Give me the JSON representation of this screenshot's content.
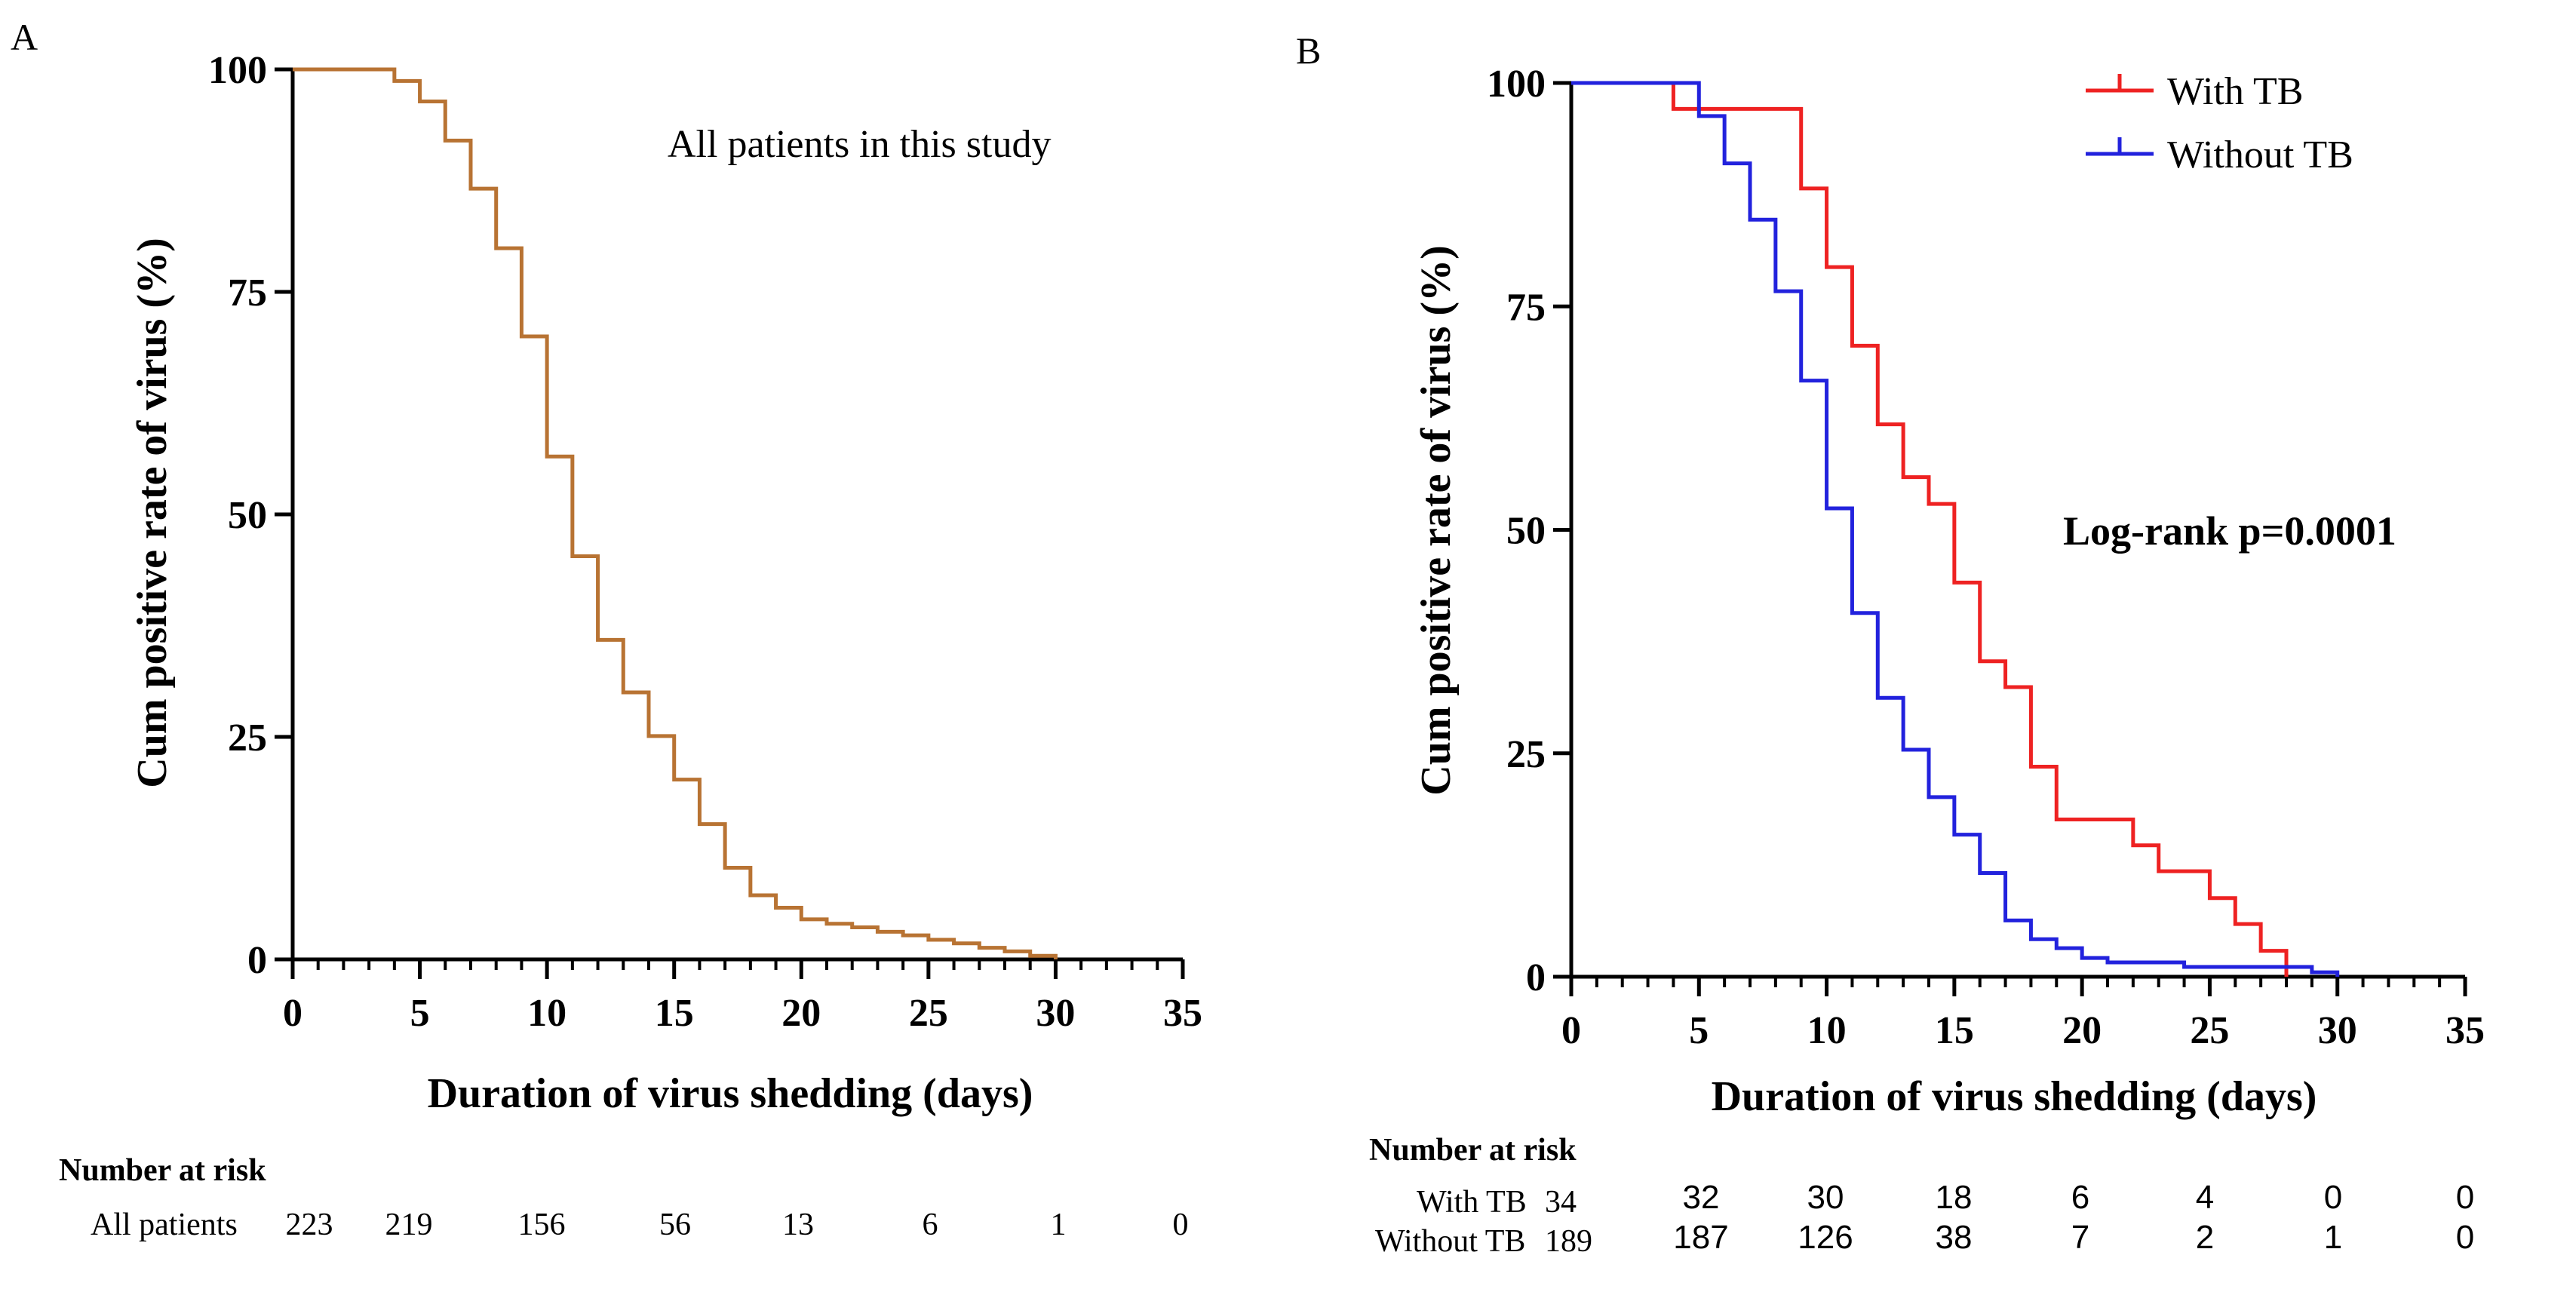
{
  "chart_data": [
    {
      "type": "line",
      "panel_label": "A",
      "title": "All patients in this study",
      "xlabel": "Duration of virus shedding (days)",
      "ylabel": "Cum positive rate of virus (%)",
      "xlim": [
        0,
        35
      ],
      "ylim": [
        0,
        100
      ],
      "xticks": [
        "0",
        "5",
        "10",
        "15",
        "20",
        "25",
        "30",
        "35"
      ],
      "yticks": [
        "0",
        "25",
        "50",
        "75",
        "100"
      ],
      "grid": false,
      "series": [
        {
          "name": "All patients",
          "color": "#b87333",
          "x": [
            0,
            4,
            5,
            6,
            7,
            8,
            9,
            10,
            11,
            12,
            13,
            14,
            15,
            16,
            17,
            18,
            19,
            20,
            21,
            22,
            23,
            24,
            25,
            26,
            27,
            28,
            29,
            30
          ],
          "y": [
            100,
            98.7,
            96.4,
            92.0,
            86.6,
            79.9,
            70.0,
            56.5,
            45.3,
            35.9,
            30.0,
            25.1,
            20.2,
            15.2,
            10.3,
            7.2,
            5.8,
            4.5,
            4.0,
            3.6,
            3.1,
            2.7,
            2.2,
            1.8,
            1.3,
            0.9,
            0.4,
            0
          ]
        }
      ],
      "risk_table": {
        "title": "Number at risk",
        "rows": [
          {
            "label": "All patients",
            "values": [
              "223",
              "219",
              "156",
              "56",
              "13",
              "6",
              "1",
              "0"
            ]
          }
        ]
      }
    },
    {
      "type": "line",
      "panel_label": "B",
      "title": "",
      "annotation": "Log-rank p=0.0001",
      "xlabel": "Duration of virus shedding (days)",
      "ylabel": "Cum positive rate of virus (%)",
      "xlim": [
        0,
        35
      ],
      "ylim": [
        0,
        100
      ],
      "xticks": [
        "0",
        "5",
        "10",
        "15",
        "20",
        "25",
        "30",
        "35"
      ],
      "yticks": [
        "0",
        "25",
        "50",
        "75",
        "100"
      ],
      "grid": false,
      "legend_position": "top-right",
      "series": [
        {
          "name": "With TB",
          "color": "#ee2222",
          "x": [
            0,
            4,
            9,
            10,
            11,
            12,
            13,
            14,
            15,
            16,
            17,
            18,
            19,
            22,
            23,
            25,
            26,
            27,
            28
          ],
          "y": [
            100,
            97.1,
            88.2,
            79.4,
            70.6,
            61.8,
            55.9,
            52.9,
            44.1,
            35.3,
            32.4,
            23.5,
            17.6,
            14.7,
            11.8,
            8.8,
            5.9,
            2.9,
            0
          ]
        },
        {
          "name": "Without TB",
          "color": "#2222dd",
          "x": [
            0,
            5,
            6,
            7,
            8,
            9,
            10,
            11,
            12,
            13,
            14,
            15,
            16,
            17,
            18,
            19,
            20,
            21,
            24,
            29,
            30
          ],
          "y": [
            100,
            96.3,
            91.0,
            84.7,
            76.7,
            66.7,
            52.4,
            40.7,
            31.2,
            25.4,
            20.1,
            15.9,
            11.6,
            6.3,
            4.2,
            3.2,
            2.1,
            1.6,
            1.1,
            0.5,
            0
          ]
        }
      ],
      "risk_table": {
        "title": "Number at risk",
        "rows": [
          {
            "label": "With TB",
            "first": "34",
            "values": [
              "32",
              "30",
              "18",
              "6",
              "4",
              "0",
              "0"
            ]
          },
          {
            "label": "Without TB",
            "first": "189",
            "values": [
              "187",
              "126",
              "38",
              "7",
              "2",
              "1",
              "0"
            ]
          }
        ]
      }
    }
  ]
}
